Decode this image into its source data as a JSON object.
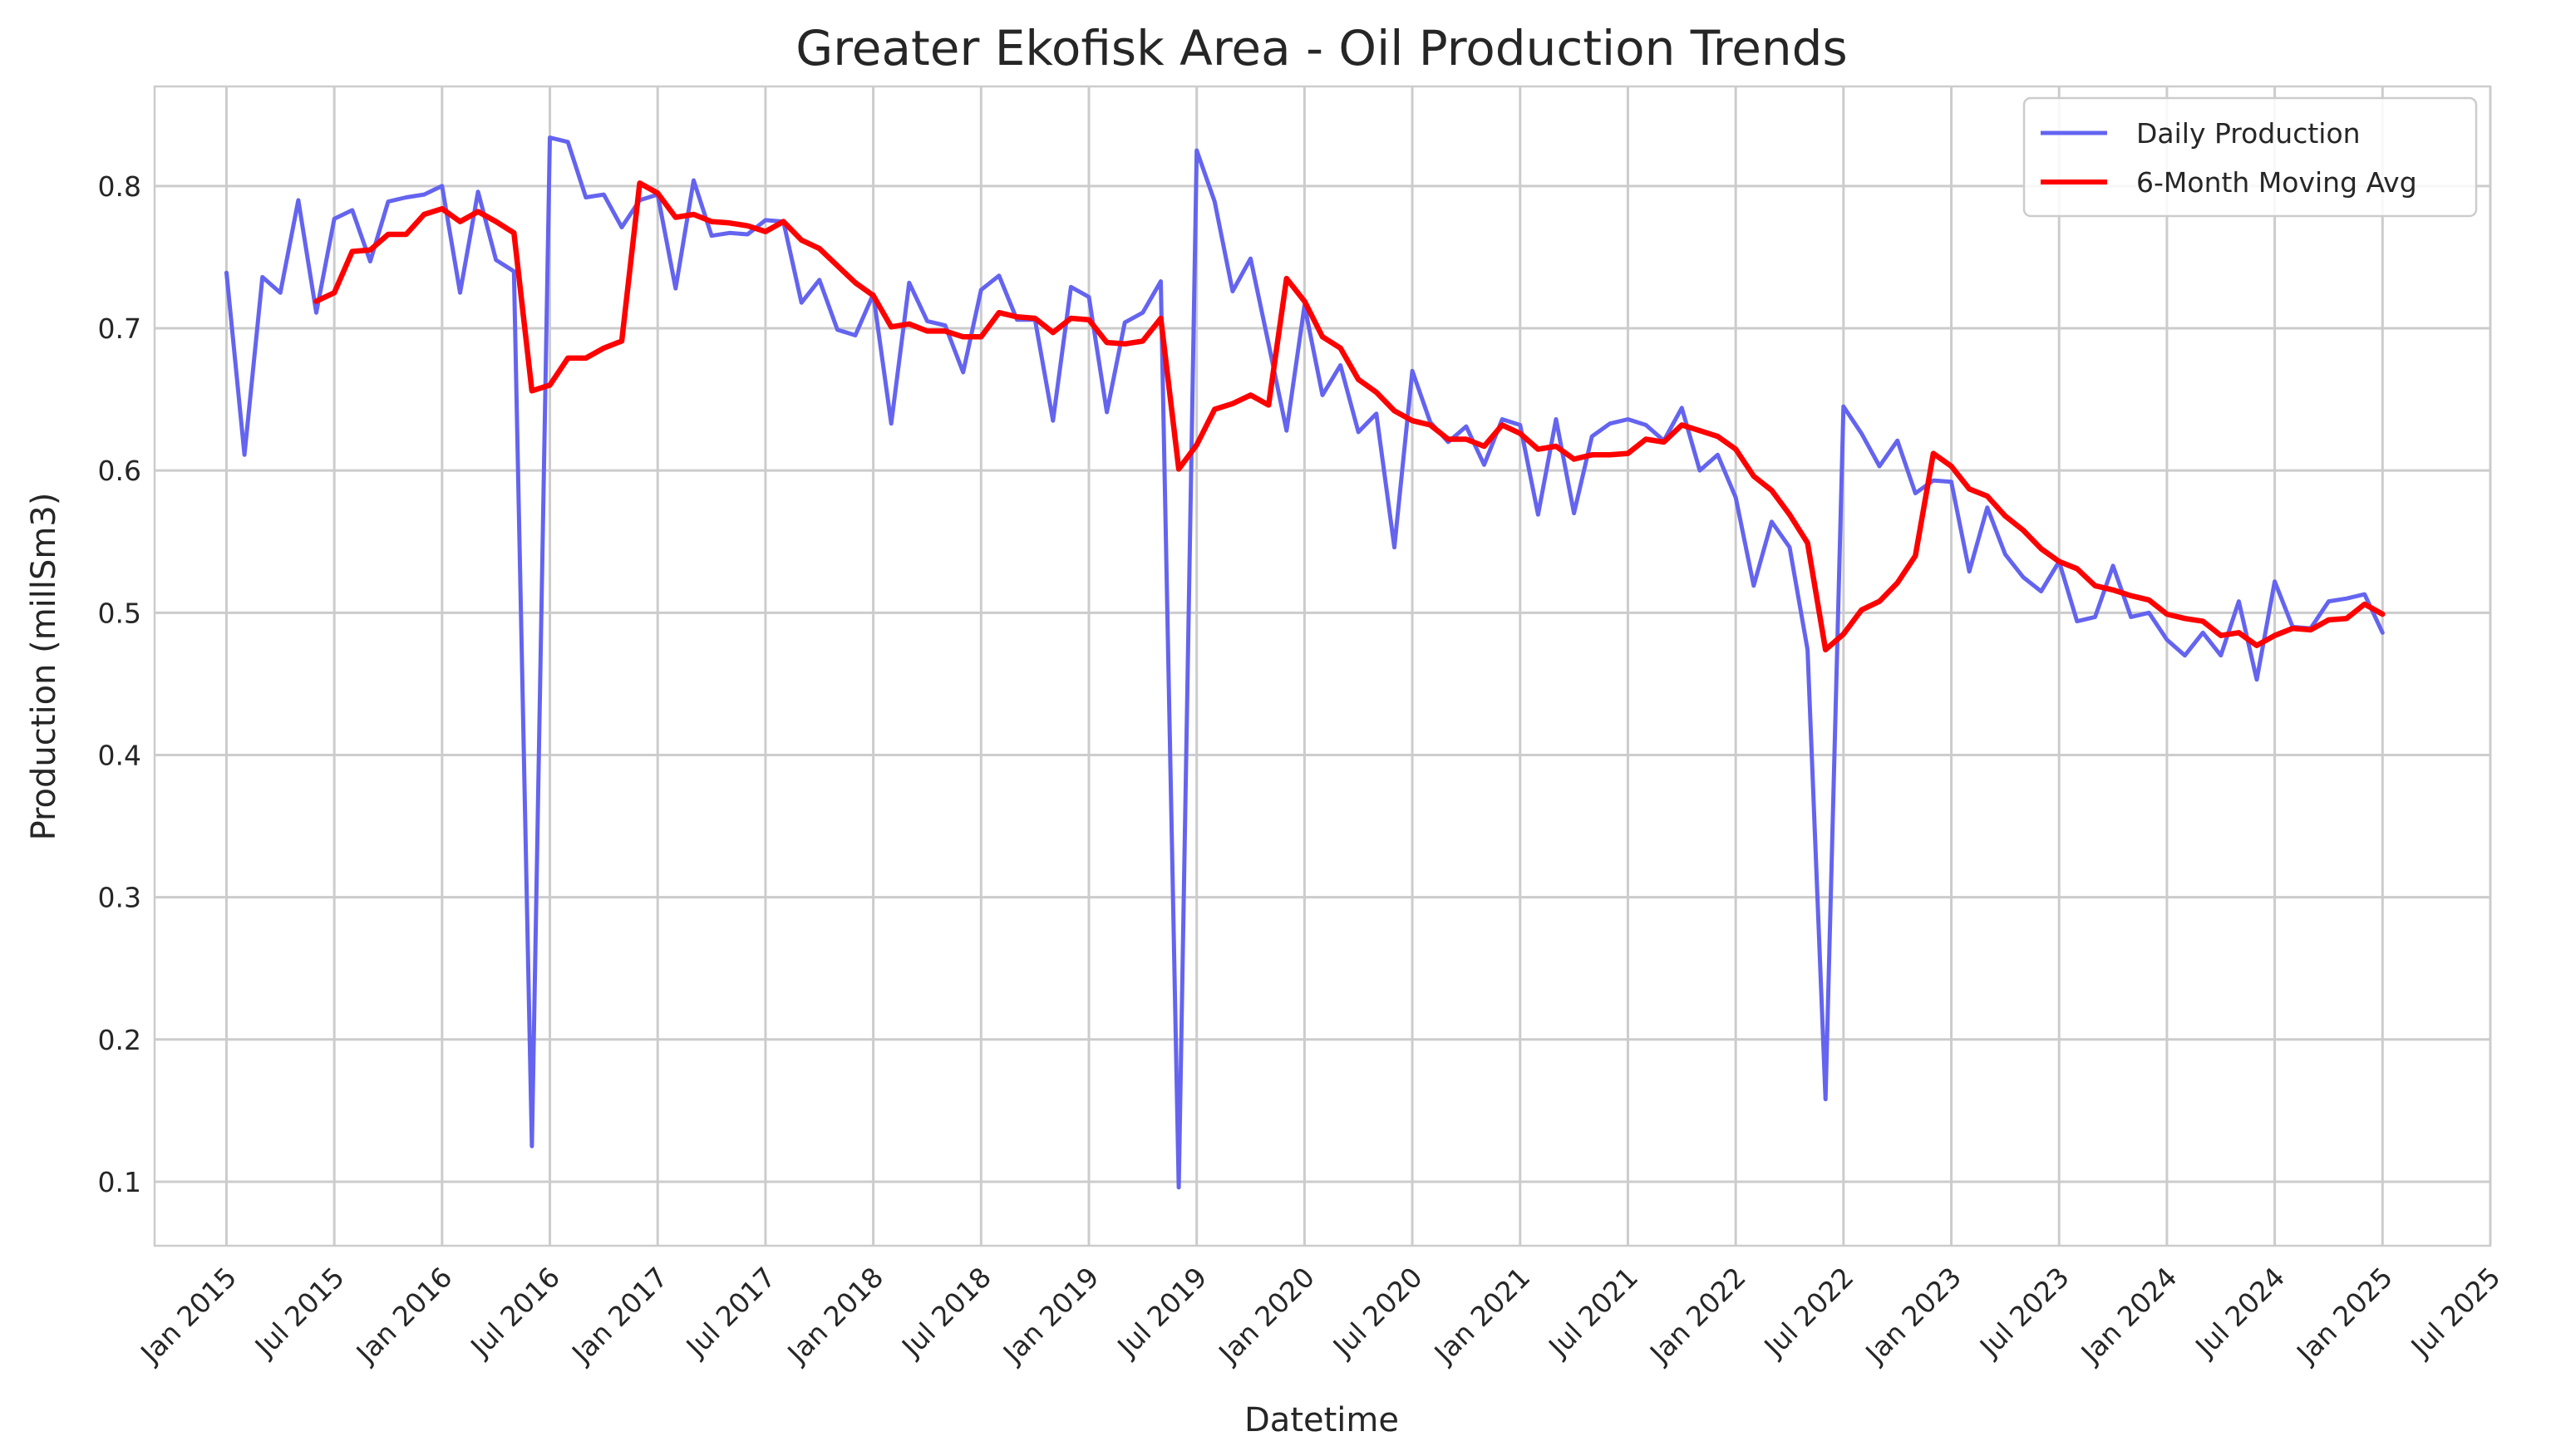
{
  "chart_data": {
    "type": "line",
    "title": "Greater Ekofisk Area - Oil Production Trends",
    "xlabel": "Datetime",
    "ylabel": "Production (millSm3)",
    "xlim": [
      "2014-09-01",
      "2025-07-01"
    ],
    "ylim": [
      0.055,
      0.87
    ],
    "grid": true,
    "legend_position": "top-right",
    "x_ticks": [
      "Jan 2015",
      "Jul 2015",
      "Jan 2016",
      "Jul 2016",
      "Jan 2017",
      "Jul 2017",
      "Jan 2018",
      "Jul 2018",
      "Jan 2019",
      "Jul 2019",
      "Jan 2020",
      "Jul 2020",
      "Jan 2021",
      "Jul 2021",
      "Jan 2022",
      "Jul 2022",
      "Jan 2023",
      "Jul 2023",
      "Jan 2024",
      "Jul 2024",
      "Jan 2025",
      "Jul 2025"
    ],
    "y_ticks": [
      "0.1",
      "0.2",
      "0.3",
      "0.4",
      "0.5",
      "0.6",
      "0.7",
      "0.8"
    ],
    "start": "2015-01",
    "series": [
      {
        "name": "Daily Production",
        "color": "#6464f0",
        "values": [
          0.739,
          0.611,
          0.736,
          0.725,
          0.79,
          0.711,
          0.777,
          0.783,
          0.747,
          0.789,
          0.792,
          0.794,
          0.8,
          0.725,
          0.796,
          0.748,
          0.74,
          0.125,
          0.834,
          0.831,
          0.792,
          0.794,
          0.771,
          0.79,
          0.794,
          0.728,
          0.804,
          0.765,
          0.767,
          0.766,
          0.776,
          0.775,
          0.718,
          0.734,
          0.699,
          0.695,
          0.724,
          0.633,
          0.732,
          0.705,
          0.702,
          0.669,
          0.727,
          0.737,
          0.706,
          0.706,
          0.635,
          0.729,
          0.722,
          0.641,
          0.704,
          0.711,
          0.733,
          0.096,
          0.825,
          0.789,
          0.726,
          0.749,
          0.689,
          0.628,
          0.716,
          0.653,
          0.674,
          0.627,
          0.64,
          0.546,
          0.67,
          0.634,
          0.62,
          0.631,
          0.604,
          0.636,
          0.632,
          0.569,
          0.636,
          0.57,
          0.624,
          0.633,
          0.636,
          0.632,
          0.621,
          0.644,
          0.6,
          0.611,
          0.581,
          0.519,
          0.564,
          0.546,
          0.474,
          0.158,
          0.645,
          0.626,
          0.603,
          0.621,
          0.584,
          0.593,
          0.592,
          0.529,
          0.574,
          0.541,
          0.525,
          0.515,
          0.536,
          0.494,
          0.497,
          0.533,
          0.497,
          0.5,
          0.481,
          0.47,
          0.486,
          0.47,
          0.508,
          0.453,
          0.522,
          0.49,
          0.489,
          0.508,
          0.51,
          0.513,
          0.486
        ],
        "note_start_index": 0
      },
      {
        "name": "6-Month Moving Avg",
        "color": "#ff0000",
        "offset_months": 5,
        "values": [
          0.719,
          0.725,
          0.754,
          0.755,
          0.766,
          0.766,
          0.78,
          0.784,
          0.775,
          0.782,
          0.775,
          0.767,
          0.656,
          0.66,
          0.679,
          0.679,
          0.686,
          0.691,
          0.802,
          0.795,
          0.778,
          0.78,
          0.775,
          0.774,
          0.772,
          0.768,
          0.775,
          0.762,
          0.756,
          0.744,
          0.732,
          0.723,
          0.701,
          0.703,
          0.698,
          0.698,
          0.694,
          0.694,
          0.711,
          0.708,
          0.707,
          0.697,
          0.707,
          0.706,
          0.69,
          0.689,
          0.691,
          0.707,
          0.601,
          0.618,
          0.643,
          0.647,
          0.653,
          0.646,
          0.735,
          0.719,
          0.694,
          0.686,
          0.664,
          0.655,
          0.642,
          0.635,
          0.632,
          0.622,
          0.622,
          0.617,
          0.632,
          0.626,
          0.615,
          0.617,
          0.608,
          0.611,
          0.611,
          0.612,
          0.622,
          0.62,
          0.632,
          0.628,
          0.624,
          0.615,
          0.596,
          0.586,
          0.569,
          0.549,
          0.474,
          0.485,
          0.502,
          0.508,
          0.521,
          0.54,
          0.612,
          0.603,
          0.587,
          0.582,
          0.568,
          0.558,
          0.545,
          0.536,
          0.531,
          0.519,
          0.516,
          0.512,
          0.509,
          0.499,
          0.496,
          0.494,
          0.484,
          0.486,
          0.477,
          0.484,
          0.489,
          0.488,
          0.495,
          0.496,
          0.506,
          0.499
        ]
      }
    ]
  }
}
